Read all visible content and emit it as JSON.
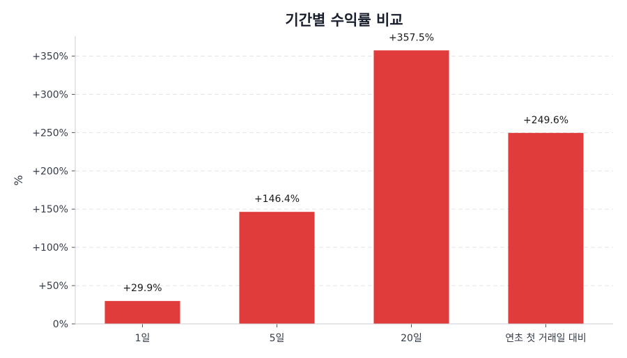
{
  "chart_data": {
    "type": "bar",
    "title": "기간별 수익률 비교",
    "xlabel": "",
    "ylabel": "%",
    "categories": [
      "1일",
      "5일",
      "20일",
      "연초 첫 거래일 대비"
    ],
    "values": [
      29.9,
      146.4,
      357.5,
      249.6
    ],
    "data_labels": [
      "+29.9%",
      "+146.4%",
      "+357.5%",
      "+249.6%"
    ],
    "ylim": [
      0,
      376
    ],
    "yticks": [
      0,
      50,
      100,
      150,
      200,
      250,
      300,
      350
    ],
    "ytick_labels": [
      "0%",
      "+50%",
      "+100%",
      "+150%",
      "+200%",
      "+250%",
      "+300%",
      "+350%"
    ],
    "grid": true,
    "bar_color": "#e03c3c"
  }
}
